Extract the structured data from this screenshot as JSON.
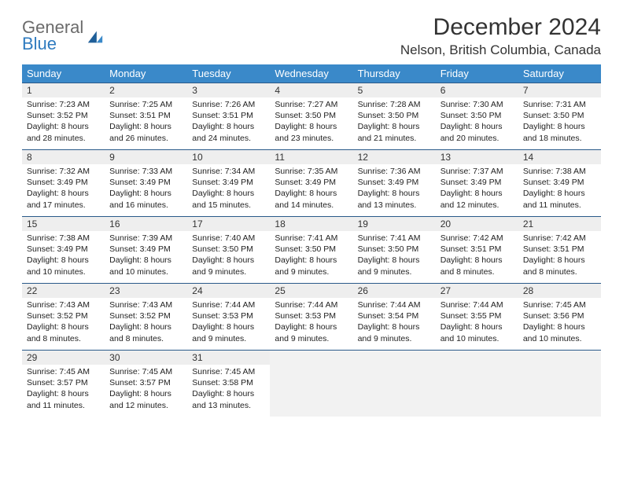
{
  "logo": {
    "general": "General",
    "blue": "Blue"
  },
  "title": "December 2024",
  "location": "Nelson, British Columbia, Canada",
  "colors": {
    "header_bg": "#3a89c9",
    "header_text": "#ffffff",
    "daynum_bg": "#eeeeee",
    "week_border": "#2a5a8a",
    "empty_bg": "#f2f2f2",
    "logo_gray": "#6b6b6b",
    "logo_blue": "#2f7bbf"
  },
  "weekdays": [
    "Sunday",
    "Monday",
    "Tuesday",
    "Wednesday",
    "Thursday",
    "Friday",
    "Saturday"
  ],
  "weeks": [
    [
      {
        "n": "1",
        "sr": "Sunrise: 7:23 AM",
        "ss": "Sunset: 3:52 PM",
        "d1": "Daylight: 8 hours",
        "d2": "and 28 minutes."
      },
      {
        "n": "2",
        "sr": "Sunrise: 7:25 AM",
        "ss": "Sunset: 3:51 PM",
        "d1": "Daylight: 8 hours",
        "d2": "and 26 minutes."
      },
      {
        "n": "3",
        "sr": "Sunrise: 7:26 AM",
        "ss": "Sunset: 3:51 PM",
        "d1": "Daylight: 8 hours",
        "d2": "and 24 minutes."
      },
      {
        "n": "4",
        "sr": "Sunrise: 7:27 AM",
        "ss": "Sunset: 3:50 PM",
        "d1": "Daylight: 8 hours",
        "d2": "and 23 minutes."
      },
      {
        "n": "5",
        "sr": "Sunrise: 7:28 AM",
        "ss": "Sunset: 3:50 PM",
        "d1": "Daylight: 8 hours",
        "d2": "and 21 minutes."
      },
      {
        "n": "6",
        "sr": "Sunrise: 7:30 AM",
        "ss": "Sunset: 3:50 PM",
        "d1": "Daylight: 8 hours",
        "d2": "and 20 minutes."
      },
      {
        "n": "7",
        "sr": "Sunrise: 7:31 AM",
        "ss": "Sunset: 3:50 PM",
        "d1": "Daylight: 8 hours",
        "d2": "and 18 minutes."
      }
    ],
    [
      {
        "n": "8",
        "sr": "Sunrise: 7:32 AM",
        "ss": "Sunset: 3:49 PM",
        "d1": "Daylight: 8 hours",
        "d2": "and 17 minutes."
      },
      {
        "n": "9",
        "sr": "Sunrise: 7:33 AM",
        "ss": "Sunset: 3:49 PM",
        "d1": "Daylight: 8 hours",
        "d2": "and 16 minutes."
      },
      {
        "n": "10",
        "sr": "Sunrise: 7:34 AM",
        "ss": "Sunset: 3:49 PM",
        "d1": "Daylight: 8 hours",
        "d2": "and 15 minutes."
      },
      {
        "n": "11",
        "sr": "Sunrise: 7:35 AM",
        "ss": "Sunset: 3:49 PM",
        "d1": "Daylight: 8 hours",
        "d2": "and 14 minutes."
      },
      {
        "n": "12",
        "sr": "Sunrise: 7:36 AM",
        "ss": "Sunset: 3:49 PM",
        "d1": "Daylight: 8 hours",
        "d2": "and 13 minutes."
      },
      {
        "n": "13",
        "sr": "Sunrise: 7:37 AM",
        "ss": "Sunset: 3:49 PM",
        "d1": "Daylight: 8 hours",
        "d2": "and 12 minutes."
      },
      {
        "n": "14",
        "sr": "Sunrise: 7:38 AM",
        "ss": "Sunset: 3:49 PM",
        "d1": "Daylight: 8 hours",
        "d2": "and 11 minutes."
      }
    ],
    [
      {
        "n": "15",
        "sr": "Sunrise: 7:38 AM",
        "ss": "Sunset: 3:49 PM",
        "d1": "Daylight: 8 hours",
        "d2": "and 10 minutes."
      },
      {
        "n": "16",
        "sr": "Sunrise: 7:39 AM",
        "ss": "Sunset: 3:49 PM",
        "d1": "Daylight: 8 hours",
        "d2": "and 10 minutes."
      },
      {
        "n": "17",
        "sr": "Sunrise: 7:40 AM",
        "ss": "Sunset: 3:50 PM",
        "d1": "Daylight: 8 hours",
        "d2": "and 9 minutes."
      },
      {
        "n": "18",
        "sr": "Sunrise: 7:41 AM",
        "ss": "Sunset: 3:50 PM",
        "d1": "Daylight: 8 hours",
        "d2": "and 9 minutes."
      },
      {
        "n": "19",
        "sr": "Sunrise: 7:41 AM",
        "ss": "Sunset: 3:50 PM",
        "d1": "Daylight: 8 hours",
        "d2": "and 9 minutes."
      },
      {
        "n": "20",
        "sr": "Sunrise: 7:42 AM",
        "ss": "Sunset: 3:51 PM",
        "d1": "Daylight: 8 hours",
        "d2": "and 8 minutes."
      },
      {
        "n": "21",
        "sr": "Sunrise: 7:42 AM",
        "ss": "Sunset: 3:51 PM",
        "d1": "Daylight: 8 hours",
        "d2": "and 8 minutes."
      }
    ],
    [
      {
        "n": "22",
        "sr": "Sunrise: 7:43 AM",
        "ss": "Sunset: 3:52 PM",
        "d1": "Daylight: 8 hours",
        "d2": "and 8 minutes."
      },
      {
        "n": "23",
        "sr": "Sunrise: 7:43 AM",
        "ss": "Sunset: 3:52 PM",
        "d1": "Daylight: 8 hours",
        "d2": "and 8 minutes."
      },
      {
        "n": "24",
        "sr": "Sunrise: 7:44 AM",
        "ss": "Sunset: 3:53 PM",
        "d1": "Daylight: 8 hours",
        "d2": "and 9 minutes."
      },
      {
        "n": "25",
        "sr": "Sunrise: 7:44 AM",
        "ss": "Sunset: 3:53 PM",
        "d1": "Daylight: 8 hours",
        "d2": "and 9 minutes."
      },
      {
        "n": "26",
        "sr": "Sunrise: 7:44 AM",
        "ss": "Sunset: 3:54 PM",
        "d1": "Daylight: 8 hours",
        "d2": "and 9 minutes."
      },
      {
        "n": "27",
        "sr": "Sunrise: 7:44 AM",
        "ss": "Sunset: 3:55 PM",
        "d1": "Daylight: 8 hours",
        "d2": "and 10 minutes."
      },
      {
        "n": "28",
        "sr": "Sunrise: 7:45 AM",
        "ss": "Sunset: 3:56 PM",
        "d1": "Daylight: 8 hours",
        "d2": "and 10 minutes."
      }
    ],
    [
      {
        "n": "29",
        "sr": "Sunrise: 7:45 AM",
        "ss": "Sunset: 3:57 PM",
        "d1": "Daylight: 8 hours",
        "d2": "and 11 minutes."
      },
      {
        "n": "30",
        "sr": "Sunrise: 7:45 AM",
        "ss": "Sunset: 3:57 PM",
        "d1": "Daylight: 8 hours",
        "d2": "and 12 minutes."
      },
      {
        "n": "31",
        "sr": "Sunrise: 7:45 AM",
        "ss": "Sunset: 3:58 PM",
        "d1": "Daylight: 8 hours",
        "d2": "and 13 minutes."
      },
      null,
      null,
      null,
      null
    ]
  ]
}
